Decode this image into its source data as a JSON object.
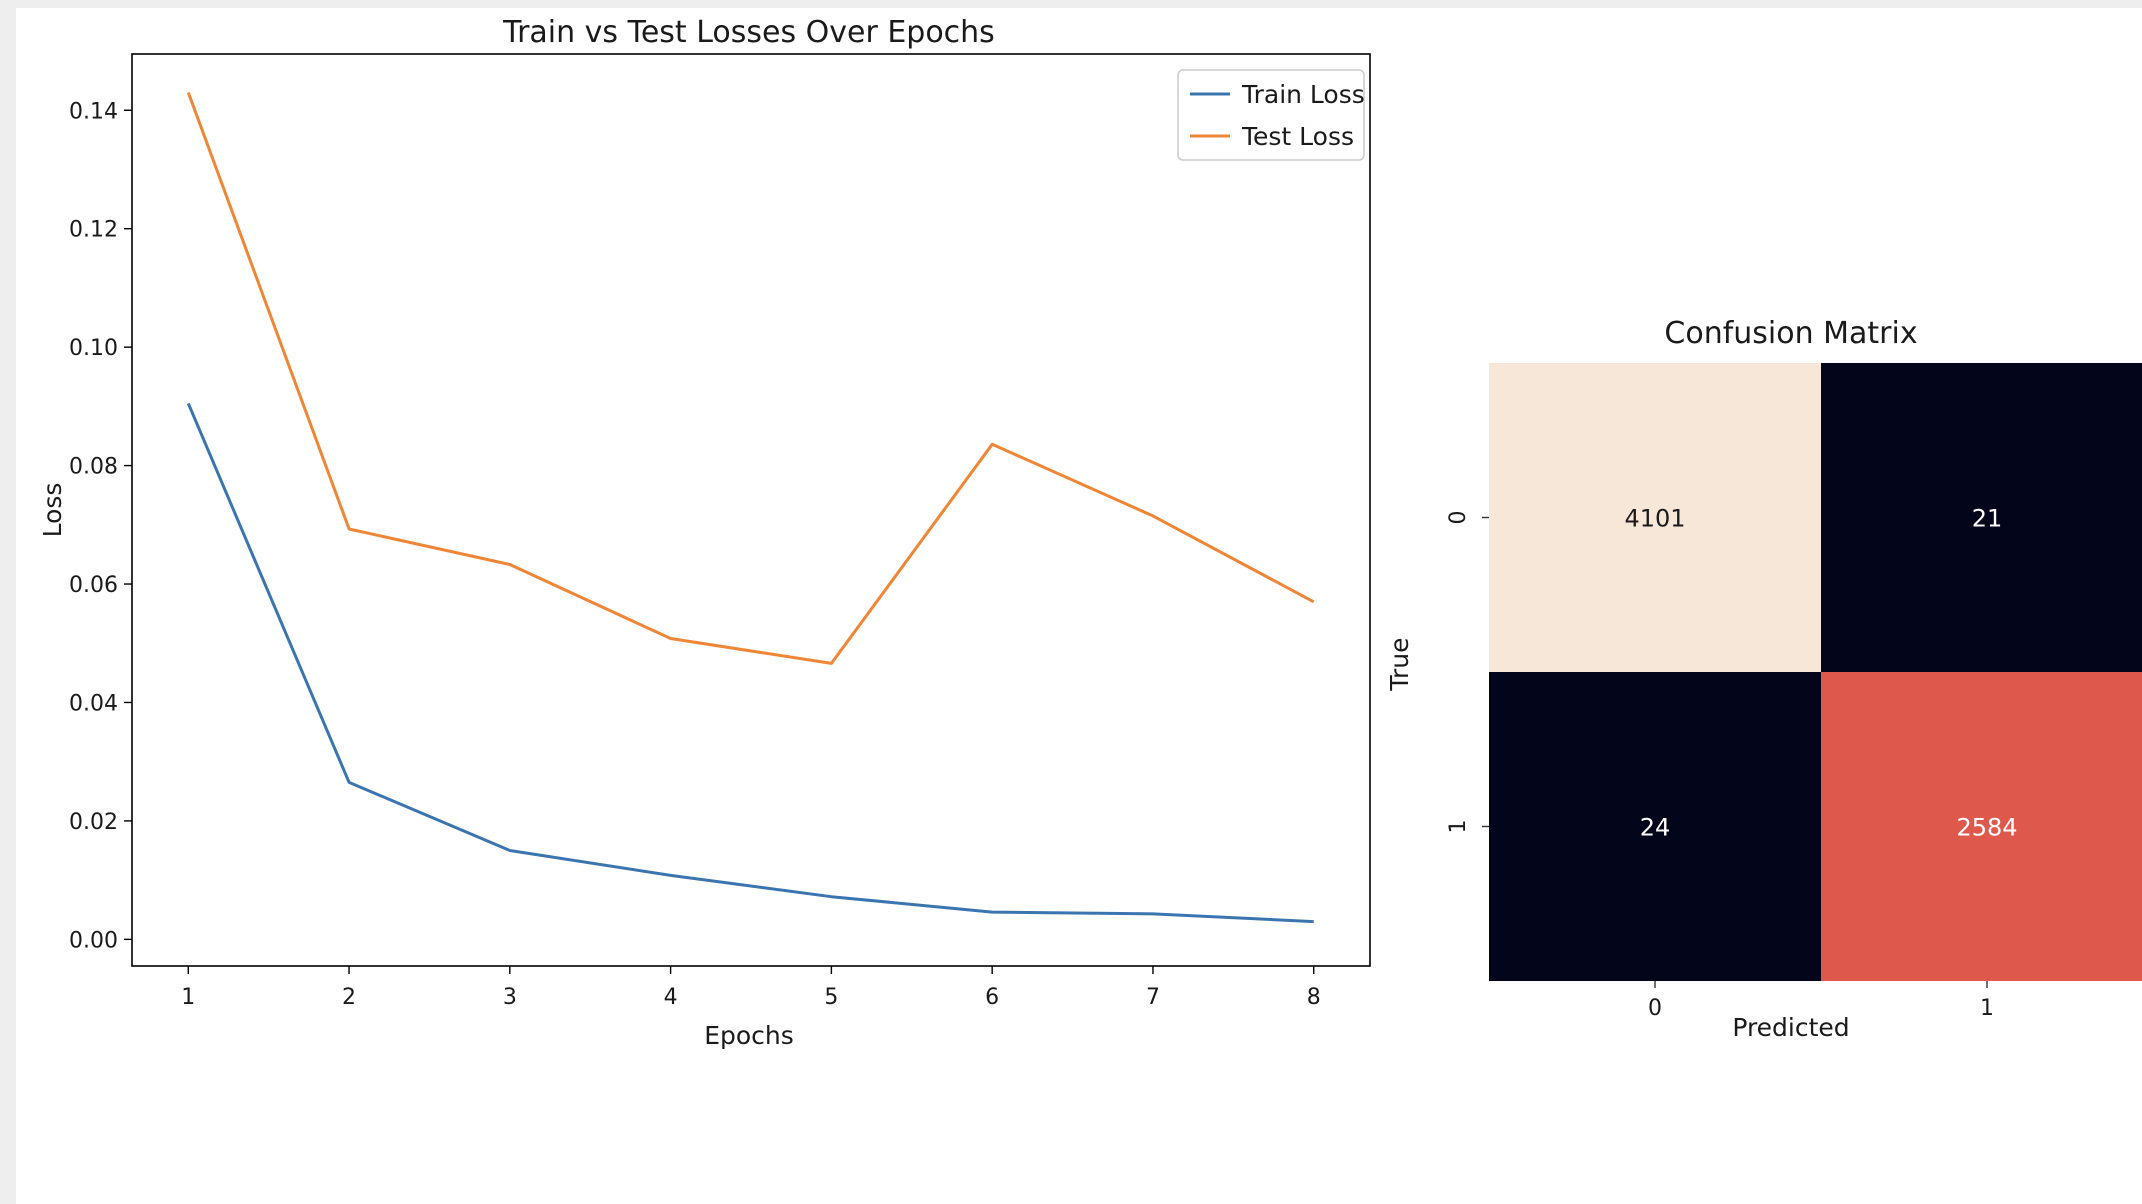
{
  "chart_data": [
    {
      "type": "line",
      "title": "Train vs Test Losses Over Epochs",
      "xlabel": "Epochs",
      "ylabel": "Loss",
      "x": [
        1,
        2,
        3,
        4,
        5,
        6,
        7,
        8
      ],
      "xticks": [
        "1",
        "2",
        "3",
        "4",
        "5",
        "6",
        "7",
        "8"
      ],
      "ylim": [
        -0.0045,
        0.1495
      ],
      "yticks": [
        "0.00",
        "0.02",
        "0.04",
        "0.06",
        "0.08",
        "0.10",
        "0.12",
        "0.14"
      ],
      "grid": false,
      "legend_position": "top-right",
      "series": [
        {
          "name": "Train Loss",
          "color": "#3b75af",
          "values": [
            0.0905,
            0.0265,
            0.015,
            0.0108,
            0.0072,
            0.0046,
            0.0043,
            0.003
          ]
        },
        {
          "name": "Test Loss",
          "color": "#ef8636",
          "values": [
            0.143,
            0.0693,
            0.0633,
            0.0508,
            0.0466,
            0.0836,
            0.0715,
            0.057
          ]
        }
      ]
    },
    {
      "type": "heatmap",
      "title": "Confusion Matrix",
      "xlabel": "Predicted",
      "ylabel": "True",
      "x_categories": [
        "0",
        "1"
      ],
      "y_categories": [
        "0",
        "1"
      ],
      "values": [
        [
          4101,
          21
        ],
        [
          24,
          2584
        ]
      ],
      "cell_colors": [
        [
          "#f6e7d9",
          "#03051a"
        ],
        [
          "#03051a",
          "#de584b"
        ]
      ],
      "text_colors": [
        [
          "#1a1a1a",
          "#ffffff"
        ],
        [
          "#ffffff",
          "#ffffff"
        ]
      ]
    }
  ]
}
